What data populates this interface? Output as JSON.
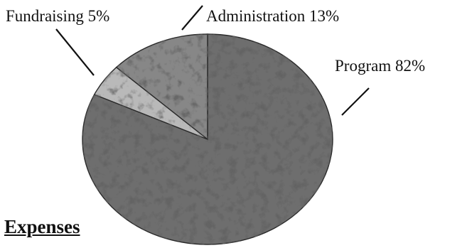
{
  "chart_data": {
    "type": "pie",
    "title": "Expenses",
    "slices": [
      {
        "label": "Program",
        "value": 82,
        "percent_label": "82%",
        "color": "#707070"
      },
      {
        "label": "Fundraising",
        "value": 5,
        "percent_label": "5%",
        "color": "#c6c6c6"
      },
      {
        "label": "Administration",
        "value": 13,
        "percent_label": "13%",
        "color": "#8b8b8b"
      }
    ],
    "legend": "none",
    "texture": "stone"
  }
}
